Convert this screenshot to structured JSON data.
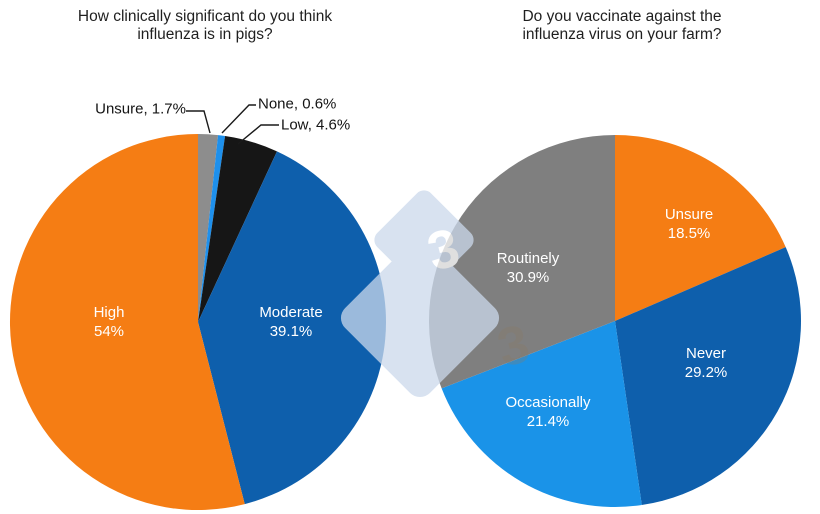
{
  "figure": {
    "background_color": "#ffffff",
    "description_labels_color": "#ffffff"
  },
  "watermark": {
    "name": "pig333-logo-watermark",
    "glyph": "3",
    "color": "#CBD9EC"
  },
  "chart_data": [
    {
      "type": "pie",
      "title": "How clinically significant do you think influenza is in pigs?",
      "unit": "%",
      "direction": "clockwise",
      "start_angle_deg": 0,
      "legend": "none (direct slice labels)",
      "slices": [
        {
          "category": "Unsure",
          "value": 1.7,
          "pct_label": "1.7%",
          "callout_label": "Unsure, 1.7%",
          "color": "#8D8D8D",
          "label_placement": "outside"
        },
        {
          "category": "None",
          "value": 0.6,
          "pct_label": "0.6%",
          "callout_label": "None, 0.6%",
          "color": "#1E90EC",
          "label_placement": "outside"
        },
        {
          "category": "Low",
          "value": 4.6,
          "pct_label": "4.6%",
          "callout_label": "Low, 4.6%",
          "color": "#161616",
          "label_placement": "outside"
        },
        {
          "category": "Moderate",
          "value": 39.1,
          "pct_label": "39.1%",
          "color": "#0E5FAC",
          "label_placement": "inside"
        },
        {
          "category": "High",
          "value": 54.0,
          "pct_label": "54%",
          "color": "#F57D14",
          "label_placement": "inside"
        }
      ]
    },
    {
      "type": "pie",
      "title": "Do you vaccinate against the influenza virus on your farm?",
      "unit": "%",
      "direction": "clockwise",
      "start_angle_deg": 0,
      "legend": "none (direct slice labels)",
      "slices": [
        {
          "category": "Unsure",
          "value": 18.5,
          "pct_label": "18.5%",
          "color": "#F57D14",
          "label_placement": "inside"
        },
        {
          "category": "Never",
          "value": 29.2,
          "pct_label": "29.2%",
          "color": "#0E5FAC",
          "label_placement": "inside"
        },
        {
          "category": "Occasionally",
          "value": 21.4,
          "pct_label": "21.4%",
          "color": "#1A93E8",
          "label_placement": "inside"
        },
        {
          "category": "Routinely",
          "value": 30.9,
          "pct_label": "30.9%",
          "color": "#7F7F7F",
          "label_placement": "inside"
        }
      ]
    }
  ]
}
